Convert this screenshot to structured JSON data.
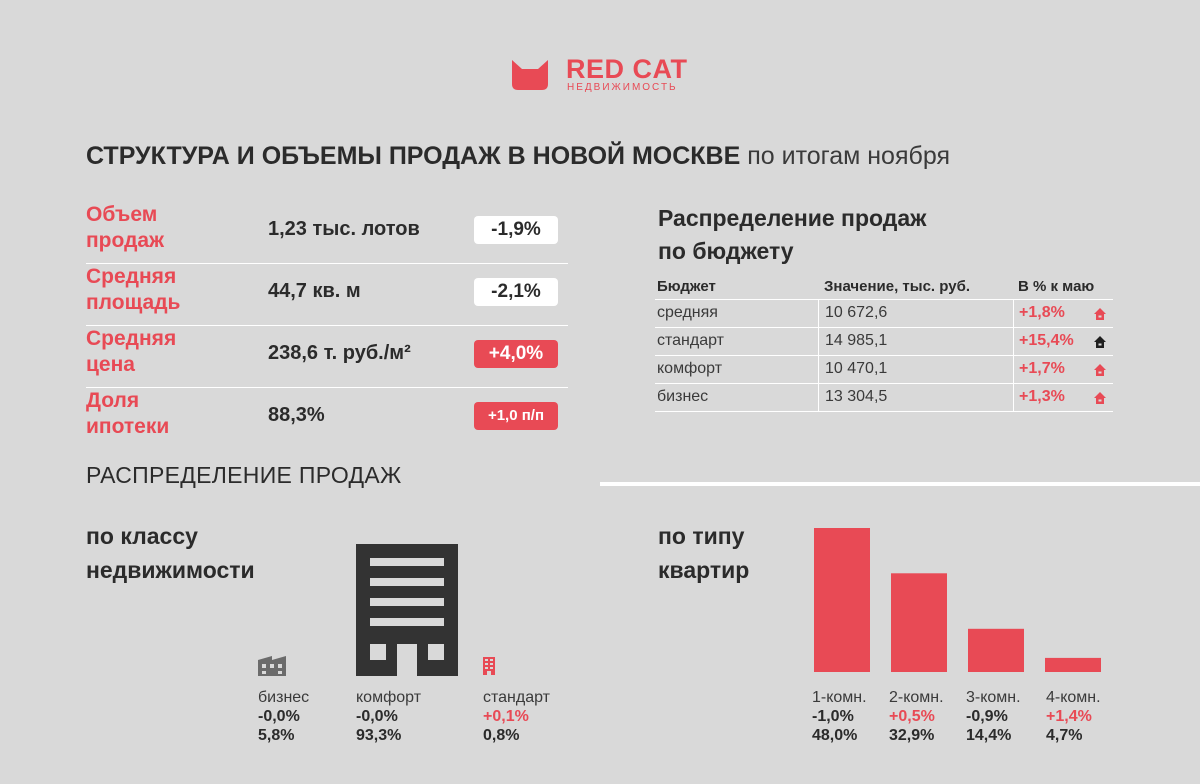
{
  "brand": {
    "name": "RED CAT",
    "sub": "НЕДВИЖИМОСТЬ",
    "color": "#e84a55"
  },
  "title": {
    "bold": "СТРУКТУРА И ОБЪЕМЫ ПРОДАЖ В НОВОЙ МОСКВЕ",
    "light": "по итогам ноября"
  },
  "kpis": [
    {
      "label": "Объем\nпродаж",
      "value": "1,23 тыс. лотов",
      "change": "-1,9%",
      "style": "white"
    },
    {
      "label": "Средняя\nплощадь",
      "value": "44,7 кв. м",
      "change": "-2,1%",
      "style": "white"
    },
    {
      "label": "Средняя\nцена",
      "value": "238,6 т. руб./м²",
      "change": "+4,0%",
      "style": "red"
    },
    {
      "label": "Доля\nипотеки",
      "value": "88,3%",
      "change": "+1,0 п/п",
      "style": "red"
    }
  ],
  "budget": {
    "title": "Распределение продаж\nпо бюджету",
    "headers": [
      "Бюджет",
      "Значение, тыс. руб.",
      "В % к маю"
    ],
    "rows": [
      {
        "segment": "средняя",
        "value": "10 672,6",
        "change": "+1,8%",
        "icon": "house-red-icon"
      },
      {
        "segment": "стандарт",
        "value": "14 985,1",
        "change": "+15,4%",
        "icon": "house-black-icon"
      },
      {
        "segment": "комфорт",
        "value": "10 470,1",
        "change": "+1,7%",
        "icon": "house-red-icon"
      },
      {
        "segment": "бизнес",
        "value": "13 304,5",
        "change": "+1,3%",
        "icon": "house-red-icon"
      }
    ]
  },
  "distribution": {
    "title": "РАСПРЕДЕЛЕНИЕ ПРОДАЖ",
    "by_class": {
      "title": "по классу\nнедвижимости",
      "items": [
        {
          "name": "бизнес",
          "change": "-0,0%",
          "share": "5,8%",
          "share_value": 5.8,
          "positive": false
        },
        {
          "name": "комфорт",
          "change": "-0,0%",
          "share": "93,3%",
          "share_value": 93.3,
          "positive": false
        },
        {
          "name": "стандарт",
          "change": "+0,1%",
          "share": "0,8%",
          "share_value": 0.8,
          "positive": true
        }
      ]
    },
    "by_type": {
      "title": "по типу\nквартир",
      "items": [
        {
          "name": "1-комн.",
          "change": "-1,0%",
          "share": "48,0%",
          "share_value": 48.0,
          "positive": false
        },
        {
          "name": "2-комн.",
          "change": "+0,5%",
          "share": "32,9%",
          "share_value": 32.9,
          "positive": true
        },
        {
          "name": "3-комн.",
          "change": "-0,9%",
          "share": "14,4%",
          "share_value": 14.4,
          "positive": false
        },
        {
          "name": "4-комн.",
          "change": "+1,4%",
          "share": "4,7%",
          "share_value": 4.7,
          "positive": true
        }
      ]
    }
  },
  "colors": {
    "background": "#d9d9d9",
    "accent": "#e84a55",
    "dark": "#2b2b2b",
    "building": "#333333",
    "icon_gray": "#6b6b6b"
  }
}
